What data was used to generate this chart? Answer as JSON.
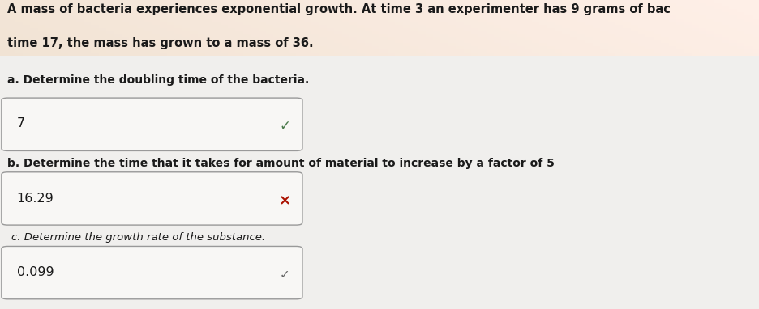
{
  "bg_gradient_top": "#e8e0d0",
  "bg_gradient_bottom": "#d0ccc4",
  "paper_color": "#f2f0ee",
  "title_line1": "A mass of bacteria experiences exponential growth. At time 3 an experimenter has 9 grams of bac",
  "title_line2": "time 17, the mass has grown to a mass of 36.",
  "q_a_label": "a. Determine the doubling time of the bacteria.",
  "q_b_label": "b. Determine the time that it takes for amount of material to increase by a factor of 5",
  "q_c_label": "c. Determine the growth rate of the substance.",
  "answer_a": "7",
  "answer_b": "16.29",
  "answer_c": "0.099",
  "check_a": "✓",
  "check_b": "×",
  "check_c": "✓",
  "check_a_color": "#4a7a4a",
  "check_b_color": "#aa1100",
  "check_c_color": "#666666",
  "box_edge_color": "#999999",
  "box_face_color": "#f8f7f5",
  "text_color": "#1a1a1a",
  "label_color": "#1a1a1a",
  "title_fontsize": 10.5,
  "label_fontsize": 10.0,
  "answer_fontsize": 11.5
}
